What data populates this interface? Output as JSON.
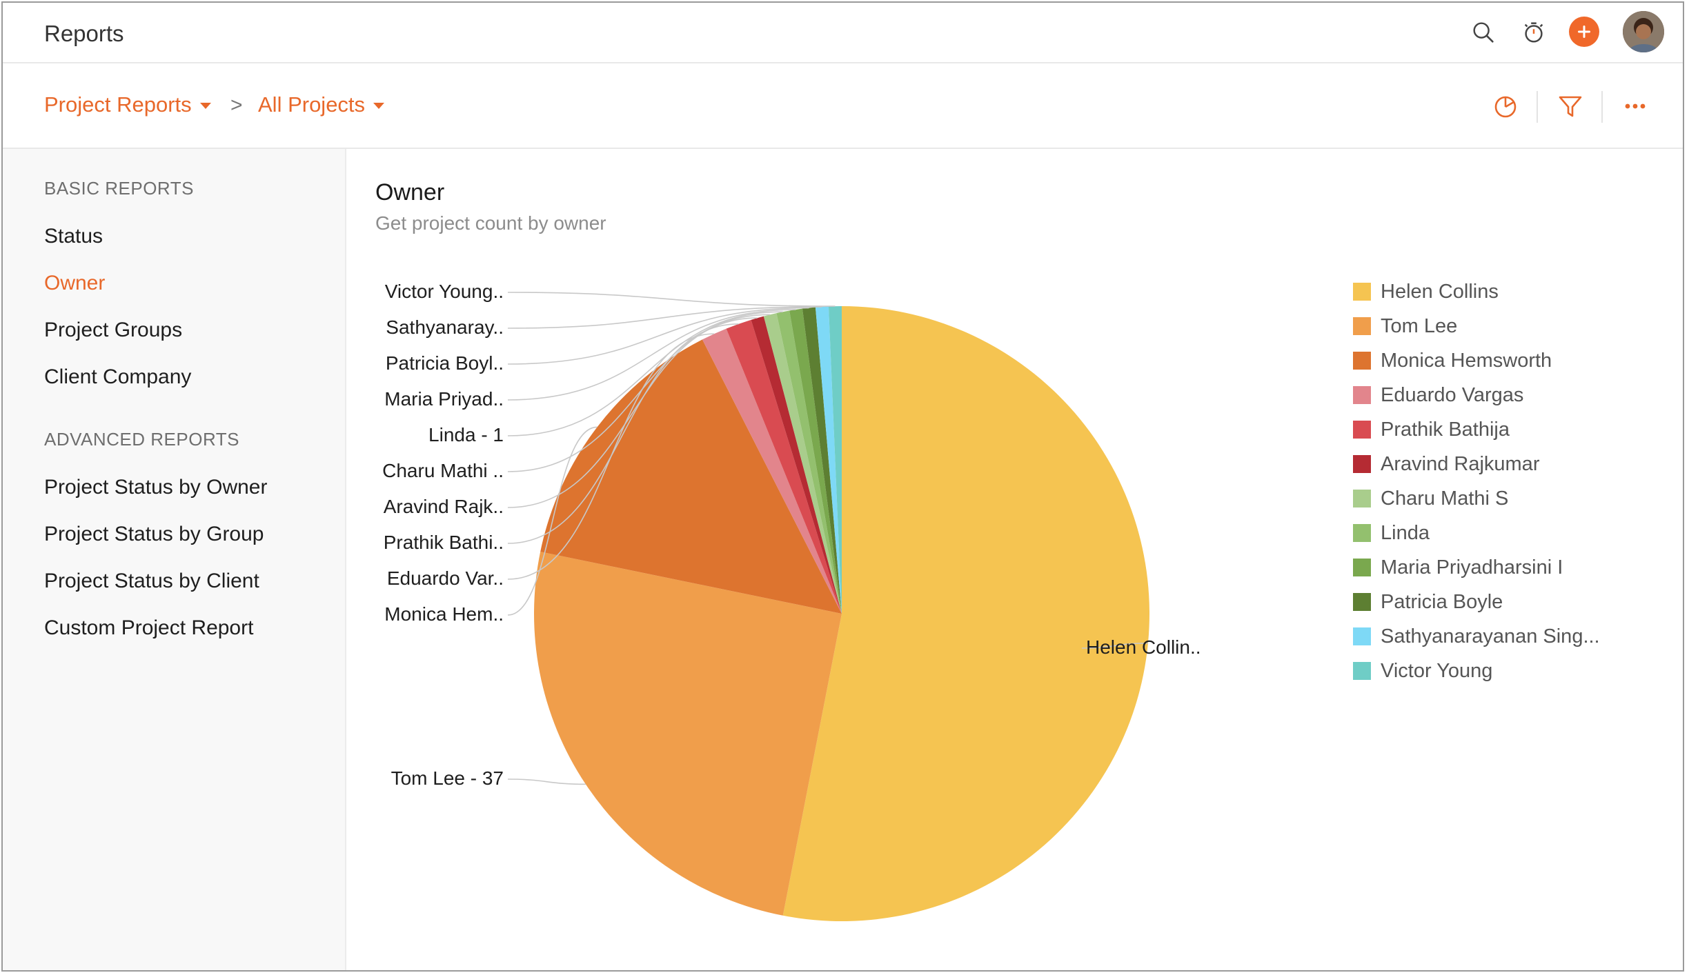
{
  "app": {
    "title": "Reports"
  },
  "topbar": {
    "icons": [
      "search-icon",
      "timer-icon",
      "bell-icon",
      "tools-icon",
      "plus-icon",
      "user-avatar"
    ]
  },
  "breadcrumb": {
    "items": [
      {
        "label": "Project Reports"
      },
      {
        "label": "All Projects"
      }
    ],
    "separator": ">"
  },
  "toolbar": {
    "icons": [
      "pie-chart-icon",
      "filter-icon",
      "more-icon"
    ]
  },
  "sidebar": {
    "sections": [
      {
        "heading": "BASIC REPORTS",
        "items": [
          {
            "label": "Status"
          },
          {
            "label": "Owner"
          },
          {
            "label": "Project Groups"
          },
          {
            "label": "Client Company"
          }
        ]
      },
      {
        "heading": "ADVANCED REPORTS",
        "items": [
          {
            "label": "Project Status by Owner"
          },
          {
            "label": "Project Status by Group"
          },
          {
            "label": "Project Status by Client"
          },
          {
            "label": "Custom Project Report"
          }
        ]
      }
    ],
    "active": "Owner"
  },
  "report": {
    "title": "Owner",
    "subtitle": "Get project count by owner"
  },
  "chart_data": {
    "type": "pie",
    "categories": [
      "Helen Collins",
      "Tom Lee",
      "Monica Hemsworth",
      "Eduardo Vargas",
      "Prathik Bathija",
      "Aravind Rajkumar",
      "Charu Mathi S",
      "Linda",
      "Maria Priyadharsini I",
      "Patricia Boyle",
      "Sathyanarayanan Sing...",
      "Victor Young"
    ],
    "values": [
      78,
      37,
      21,
      2,
      2,
      1,
      1,
      1,
      1,
      1,
      1,
      1
    ],
    "colors": [
      "#f5c451",
      "#f09e4b",
      "#dd742f",
      "#e2858c",
      "#d94b51",
      "#b52b33",
      "#a9cd8c",
      "#93c06e",
      "#7aa84e",
      "#5d7f32",
      "#7ed9f6",
      "#6fcdc6"
    ],
    "slice_labels": [
      "Helen Collin..",
      "Tom Lee - 37",
      "Monica Hem..",
      "Eduardo Var..",
      "Prathik Bathi..",
      "Aravind Rajk..",
      "Charu Mathi ..",
      "Linda - 1",
      "Maria Priyad..",
      "Patricia Boyl..",
      "Sathyanaray..",
      "Victor Young.."
    ],
    "legend_position": "right"
  },
  "colors": {
    "accent": "#e8682a",
    "text": "#1e1e1e",
    "muted": "#8c8c8c"
  }
}
